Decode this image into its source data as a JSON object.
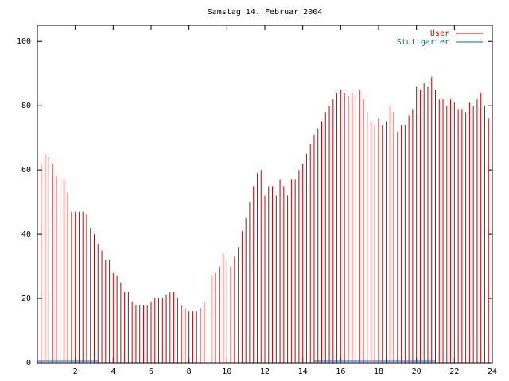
{
  "chart_data": {
    "type": "impulse",
    "title": "Samstag 14. Februar 2004",
    "xlim": [
      0,
      24
    ],
    "ylim": [
      0,
      105
    ],
    "xticks": [
      2,
      4,
      6,
      8,
      10,
      12,
      14,
      16,
      18,
      20,
      22,
      24
    ],
    "yticks": [
      0,
      20,
      40,
      60,
      80,
      100
    ],
    "legend": "top-right",
    "series": [
      {
        "name": "User",
        "color": "#cc0000",
        "style": "impulses",
        "x": [
          0,
          0.2,
          0.4,
          0.6,
          0.8,
          1,
          1.2,
          1.4,
          1.6,
          1.8,
          2,
          2.2,
          2.4,
          2.6,
          2.8,
          3,
          3.2,
          3.4,
          3.6,
          3.8,
          4,
          4.2,
          4.4,
          4.6,
          4.8,
          5,
          5.2,
          5.4,
          5.6,
          5.8,
          6,
          6.2,
          6.4,
          6.6,
          6.8,
          7,
          7.2,
          7.4,
          7.6,
          7.8,
          8,
          8.2,
          8.4,
          8.6,
          8.8,
          9,
          9.2,
          9.4,
          9.6,
          9.8,
          10,
          10.2,
          10.4,
          10.6,
          10.8,
          11,
          11.2,
          11.4,
          11.6,
          11.8,
          12,
          12.2,
          12.4,
          12.6,
          12.8,
          13,
          13.2,
          13.4,
          13.6,
          13.8,
          14,
          14.2,
          14.4,
          14.6,
          14.8,
          15,
          15.2,
          15.4,
          15.6,
          15.8,
          16,
          16.2,
          16.4,
          16.6,
          16.8,
          17,
          17.2,
          17.4,
          17.6,
          17.8,
          18,
          18.2,
          18.4,
          18.6,
          18.8,
          19,
          19.2,
          19.4,
          19.6,
          19.8,
          20,
          20.2,
          20.4,
          20.6,
          20.8,
          21,
          21.2,
          21.4,
          21.6,
          21.8,
          22,
          22.2,
          22.4,
          22.6,
          22.8,
          23,
          23.2,
          23.4,
          23.6,
          23.8
        ],
        "values": [
          67,
          62,
          65,
          64,
          62,
          58,
          57,
          57,
          53,
          47,
          47,
          47,
          47,
          46,
          42,
          40,
          37,
          35,
          32,
          32,
          28,
          27,
          25,
          22,
          22,
          19,
          18,
          18,
          18,
          18,
          19,
          20,
          20,
          20,
          21,
          22,
          22,
          20,
          18,
          17,
          16,
          16,
          16,
          17,
          19,
          24,
          27,
          28,
          30,
          34,
          32,
          30,
          33,
          36,
          41,
          45,
          50,
          55,
          59,
          60,
          52,
          55,
          55,
          52,
          57,
          55,
          52,
          57,
          57,
          60,
          62,
          65,
          68,
          71,
          73,
          75,
          78,
          80,
          82,
          84,
          85,
          84,
          83,
          84,
          83,
          85,
          82,
          78,
          75,
          74,
          76,
          74,
          75,
          80,
          78,
          72,
          74,
          74,
          77,
          79,
          86,
          85,
          87,
          86,
          89,
          85,
          82,
          82,
          80,
          82,
          81,
          79,
          79,
          78,
          81,
          80,
          82,
          84,
          80,
          76
        ]
      },
      {
        "name": "Stuttgarter",
        "color": "#0066cc",
        "style": "lines",
        "x": [
          0,
          3.2,
          3.4,
          14.6,
          21
        ],
        "values": [
          0.5,
          0.5,
          null,
          0.5,
          0.5
        ]
      }
    ]
  }
}
